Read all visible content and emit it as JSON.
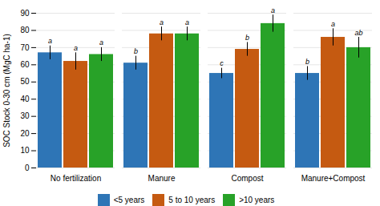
{
  "chart_data": {
    "type": "bar",
    "ylabel": "SOC Stock 0-30 cm (MgC ha-1)",
    "categories": [
      "No fertilization",
      "Manure",
      "Compost",
      "Manure+Compost"
    ],
    "series": [
      {
        "name": "<5 years",
        "color": "#2E75B6",
        "values": [
          67,
          61,
          55,
          55
        ],
        "errors": [
          4,
          4,
          3,
          4
        ],
        "sig_labels": [
          "a",
          "b",
          "c",
          "b"
        ]
      },
      {
        "name": "5 to 10 years",
        "color": "#C55A11",
        "values": [
          62,
          78,
          69,
          76
        ],
        "errors": [
          5,
          4,
          4,
          5
        ],
        "sig_labels": [
          "a",
          "a",
          "b",
          "a"
        ]
      },
      {
        "name": ">10 years",
        "color": "#28A228",
        "values": [
          66,
          78,
          84,
          70
        ],
        "errors": [
          4,
          4,
          5,
          6
        ],
        "sig_labels": [
          "a",
          "a",
          "a",
          "ab"
        ]
      }
    ],
    "ylim": [
      0,
      90
    ],
    "yticks": [
      0,
      10,
      20,
      30,
      40,
      50,
      60,
      70,
      80,
      90
    ],
    "grid": true,
    "legend": "bottom"
  }
}
